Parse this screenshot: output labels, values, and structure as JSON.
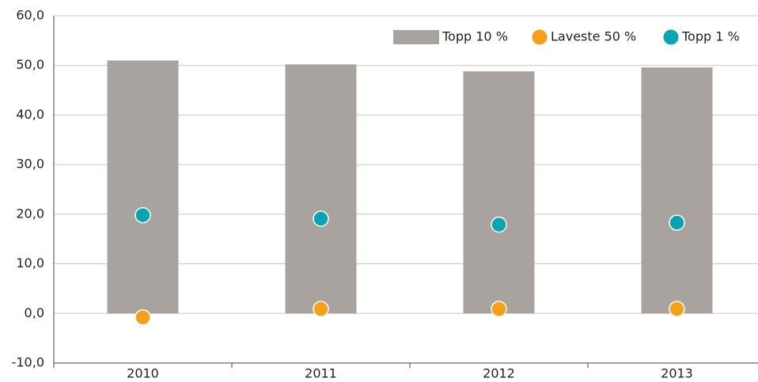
{
  "chart_data": {
    "type": "bar",
    "categories": [
      "2010",
      "2011",
      "2012",
      "2013"
    ],
    "series": [
      {
        "name": "Topp 10 %",
        "type": "bar",
        "color": "#a8a39f",
        "values": [
          51.0,
          50.2,
          48.8,
          49.6
        ]
      },
      {
        "name": "Laveste 50 %",
        "type": "scatter",
        "color": "#f6a01a",
        "values": [
          -0.8,
          0.9,
          0.9,
          0.9
        ]
      },
      {
        "name": "Topp 1 %",
        "type": "scatter",
        "color": "#0aa3b1",
        "values": [
          19.8,
          19.1,
          17.9,
          18.3
        ]
      }
    ],
    "ylim": [
      -10,
      60
    ],
    "yticks": [
      {
        "value": -10,
        "label": "-10,0"
      },
      {
        "value": 0,
        "label": "0,0"
      },
      {
        "value": 10,
        "label": "10,0"
      },
      {
        "value": 20,
        "label": "20,0"
      },
      {
        "value": 30,
        "label": "30,0"
      },
      {
        "value": 40,
        "label": "40,0"
      },
      {
        "value": 50,
        "label": "50,0"
      },
      {
        "value": 60,
        "label": "60,0"
      }
    ],
    "grid": true,
    "legend": "top-right"
  }
}
